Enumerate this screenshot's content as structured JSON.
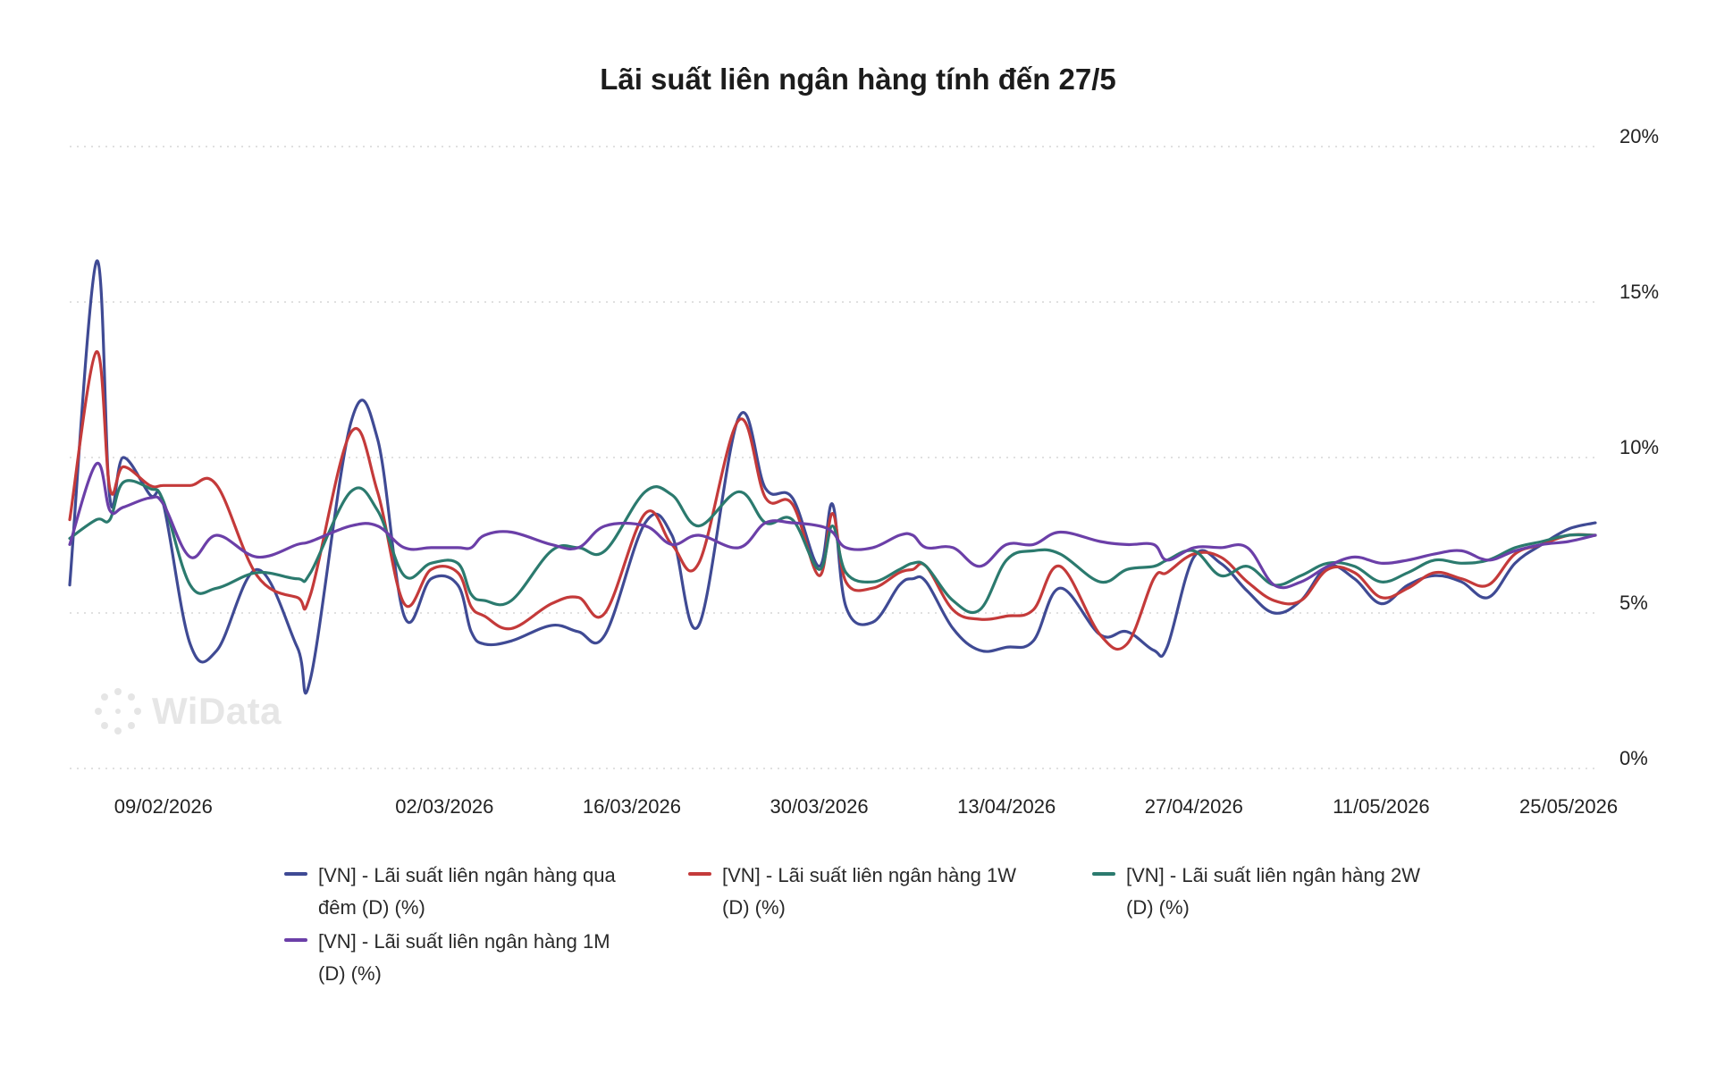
{
  "chart_data": {
    "type": "line",
    "title": "Lãi suất liên ngân hàng tính đến 27/5",
    "xlabel": "",
    "ylabel": "",
    "ylim": [
      0,
      20
    ],
    "y_ticks": [
      "0%",
      "5%",
      "10%",
      "15%",
      "20%"
    ],
    "y_tick_values": [
      0,
      5,
      10,
      15,
      20
    ],
    "x_ticks": [
      "09/02/2026",
      "02/03/2026",
      "16/03/2026",
      "30/03/2026",
      "13/04/2026",
      "27/04/2026",
      "11/05/2026",
      "25/05/2026"
    ],
    "grid": "horizontal dotted",
    "y_axis_position": "right",
    "legend_position": "bottom",
    "x": [
      "2026-02-02",
      "2026-02-04",
      "2026-02-05",
      "2026-02-06",
      "2026-02-08",
      "2026-02-09",
      "2026-02-11",
      "2026-02-13",
      "2026-02-16",
      "2026-02-19",
      "2026-02-20",
      "2026-02-23",
      "2026-02-25",
      "2026-02-27",
      "2026-03-01",
      "2026-03-03",
      "2026-03-04",
      "2026-03-05",
      "2026-03-07",
      "2026-03-10",
      "2026-03-12",
      "2026-03-14",
      "2026-03-17",
      "2026-03-19",
      "2026-03-21",
      "2026-03-24",
      "2026-03-26",
      "2026-03-28",
      "2026-03-30",
      "2026-03-31",
      "2026-04-01",
      "2026-04-03",
      "2026-04-05",
      "2026-04-06",
      "2026-04-07",
      "2026-04-09",
      "2026-04-11",
      "2026-04-13",
      "2026-04-15",
      "2026-04-17",
      "2026-04-20",
      "2026-04-22",
      "2026-04-24",
      "2026-04-25",
      "2026-04-27",
      "2026-04-29",
      "2026-05-01",
      "2026-05-03",
      "2026-05-05",
      "2026-05-07",
      "2026-05-09",
      "2026-05-11",
      "2026-05-13",
      "2026-05-15",
      "2026-05-17",
      "2026-05-19",
      "2026-05-21",
      "2026-05-23",
      "2026-05-25",
      "2026-05-27"
    ],
    "series": [
      {
        "name": "[VN] - Lãi suất liên ngân hàng qua đêm (D) (%)",
        "color": "#3f4a94",
        "values": [
          5.9,
          16.3,
          8.7,
          10.0,
          8.8,
          8.5,
          4.0,
          3.8,
          6.4,
          3.9,
          2.9,
          11.1,
          10.6,
          4.9,
          6.1,
          5.9,
          4.4,
          4.0,
          4.1,
          4.6,
          4.4,
          4.3,
          7.9,
          7.5,
          4.6,
          11.3,
          9.0,
          8.7,
          6.5,
          8.5,
          5.2,
          4.7,
          5.9,
          6.1,
          6.0,
          4.5,
          3.8,
          3.9,
          4.1,
          5.8,
          4.3,
          4.4,
          3.8,
          3.9,
          6.8,
          6.6,
          5.7,
          5.0,
          5.4,
          6.5,
          6.1,
          5.3,
          5.9,
          6.2,
          6.0,
          5.5,
          6.6,
          7.2,
          7.7,
          7.9
        ]
      },
      {
        "name": "[VN] - Lãi suất liên ngân hàng 1W (D) (%)",
        "color": "#c43a3a",
        "values": [
          8.0,
          13.4,
          9.0,
          9.7,
          9.1,
          9.1,
          9.1,
          9.1,
          6.2,
          5.5,
          5.6,
          10.8,
          8.9,
          5.3,
          6.4,
          6.3,
          5.2,
          4.9,
          4.5,
          5.3,
          5.5,
          5.0,
          8.2,
          7.2,
          6.6,
          11.2,
          8.7,
          8.5,
          6.2,
          8.2,
          6.0,
          5.8,
          6.3,
          6.4,
          6.5,
          5.1,
          4.8,
          4.9,
          5.1,
          6.5,
          4.3,
          4.0,
          6.1,
          6.3,
          6.9,
          6.8,
          6.0,
          5.4,
          5.4,
          6.4,
          6.3,
          5.5,
          5.8,
          6.3,
          6.1,
          5.9,
          6.9,
          7.2,
          7.5,
          7.5
        ]
      },
      {
        "name": "[VN] - Lãi suất liên ngân hàng 2W (D) (%)",
        "color": "#2b7a6e",
        "values": [
          7.4,
          8.0,
          8.0,
          9.2,
          9.0,
          8.6,
          5.9,
          5.8,
          6.3,
          6.1,
          6.3,
          8.9,
          8.3,
          6.2,
          6.6,
          6.6,
          5.6,
          5.4,
          5.4,
          7.0,
          7.1,
          7.0,
          8.9,
          8.8,
          7.8,
          8.9,
          7.9,
          8.0,
          6.4,
          7.8,
          6.3,
          6.0,
          6.4,
          6.6,
          6.5,
          5.4,
          5.1,
          6.7,
          7.0,
          6.9,
          6.0,
          6.4,
          6.5,
          6.7,
          7.0,
          6.2,
          6.5,
          5.9,
          6.2,
          6.6,
          6.5,
          6.0,
          6.3,
          6.7,
          6.6,
          6.7,
          7.1,
          7.3,
          7.5,
          7.5
        ]
      },
      {
        "name": "[VN] - Lãi suất liên ngân hàng 1M (D) (%)",
        "color": "#6b3fa8",
        "values": [
          7.2,
          9.8,
          8.3,
          8.4,
          8.7,
          8.5,
          6.8,
          7.5,
          6.8,
          7.2,
          7.3,
          7.8,
          7.8,
          7.1,
          7.1,
          7.1,
          7.1,
          7.5,
          7.6,
          7.2,
          7.1,
          7.8,
          7.8,
          7.2,
          7.5,
          7.1,
          7.9,
          7.9,
          7.8,
          7.6,
          7.1,
          7.1,
          7.5,
          7.5,
          7.1,
          7.1,
          6.5,
          7.2,
          7.2,
          7.6,
          7.3,
          7.2,
          7.2,
          6.7,
          7.1,
          7.1,
          7.1,
          5.9,
          6.0,
          6.5,
          6.8,
          6.6,
          6.7,
          6.9,
          7.0,
          6.7,
          7.0,
          7.2,
          7.3,
          7.5
        ]
      }
    ]
  },
  "legend": {
    "items": [
      {
        "label": "[VN] - Lãi suất liên ngân hàng qua đêm (D) (%)",
        "color": "#3f4a94"
      },
      {
        "label": "[VN] - Lãi suất liên ngân hàng 1W (D) (%)",
        "color": "#c43a3a"
      },
      {
        "label": "[VN] - Lãi suất liên ngân hàng 2W (D) (%)",
        "color": "#2b7a6e"
      },
      {
        "label": "[VN] - Lãi suất liên ngân hàng 1M (D) (%)",
        "color": "#6b3fa8"
      }
    ]
  },
  "watermark": {
    "text": "WiData",
    "icon": "widata-logo-icon"
  }
}
